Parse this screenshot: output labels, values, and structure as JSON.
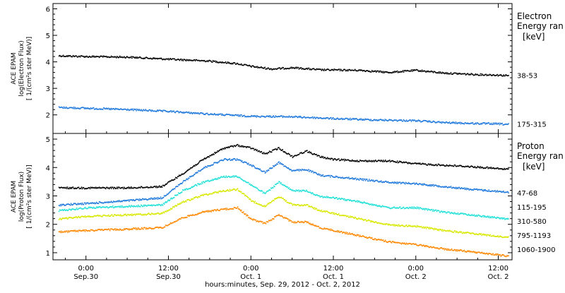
{
  "chart_data": {
    "type": "scatter",
    "x_axis": {
      "title": "hours:minutes, Sep. 29, 2012 - Oct. 2, 2012",
      "range_hours": [
        -4.8,
        62
      ],
      "ticks": [
        {
          "hours": 0,
          "time": "0:00",
          "date": "Sep.30"
        },
        {
          "hours": 12,
          "time": "12:00",
          "date": "Sep.30"
        },
        {
          "hours": 24,
          "time": "0:00",
          "date": "Oct. 1"
        },
        {
          "hours": 36,
          "time": "12:00",
          "date": "Oct. 1"
        },
        {
          "hours": 48,
          "time": "0:00",
          "date": "Oct. 2"
        },
        {
          "hours": 60,
          "time": "12:00",
          "date": "Oct. 2"
        }
      ]
    },
    "panels": [
      {
        "id": "electron",
        "ylabel": [
          "ACE EPAM",
          "log(Electron Flux)",
          "[ 1/(cm²s ster MeV)]"
        ],
        "ylim": [
          1.3,
          6.2
        ],
        "yticks": [
          2,
          3,
          4,
          5,
          6
        ],
        "legend_title": [
          "Electron",
          "Energy ran"
        ],
        "legend_unit": "[keV]",
        "series": [
          {
            "name": "38-53",
            "color": "#000000",
            "points": [
              [
                -4,
                4.25
              ],
              [
                0,
                4.22
              ],
              [
                6,
                4.2
              ],
              [
                12,
                4.12
              ],
              [
                18,
                4.05
              ],
              [
                22,
                3.95
              ],
              [
                24,
                3.85
              ],
              [
                27,
                3.75
              ],
              [
                30,
                3.8
              ],
              [
                34,
                3.72
              ],
              [
                40,
                3.7
              ],
              [
                44,
                3.62
              ],
              [
                48,
                3.7
              ],
              [
                52,
                3.6
              ],
              [
                56,
                3.55
              ],
              [
                60,
                3.52
              ],
              [
                61.5,
                3.5
              ]
            ]
          },
          {
            "name": "175-315",
            "color": "#1e78dc",
            "points": [
              [
                -4,
                2.3
              ],
              [
                0,
                2.27
              ],
              [
                6,
                2.22
              ],
              [
                12,
                2.15
              ],
              [
                18,
                2.05
              ],
              [
                24,
                1.97
              ],
              [
                30,
                1.95
              ],
              [
                36,
                1.88
              ],
              [
                42,
                1.83
              ],
              [
                48,
                1.8
              ],
              [
                52,
                1.73
              ],
              [
                56,
                1.7
              ],
              [
                60,
                1.68
              ],
              [
                61.5,
                1.66
              ]
            ]
          }
        ]
      },
      {
        "id": "proton",
        "ylabel": [
          "ACE EPAM",
          "log(Proton Flux)",
          "[ 1/(cm²s ster MeV)]"
        ],
        "ylim": [
          0.75,
          5.2
        ],
        "yticks": [
          1,
          2,
          3,
          4,
          5
        ],
        "legend_title": [
          "Proton",
          "Energy ran"
        ],
        "legend_unit": "[keV]",
        "series": [
          {
            "name": "47-68",
            "color": "#000000",
            "points": [
              [
                -4,
                3.3
              ],
              [
                0,
                3.3
              ],
              [
                6,
                3.3
              ],
              [
                11,
                3.35
              ],
              [
                14,
                3.8
              ],
              [
                17,
                4.3
              ],
              [
                20,
                4.7
              ],
              [
                22,
                4.8
              ],
              [
                24,
                4.7
              ],
              [
                26,
                4.5
              ],
              [
                28,
                4.7
              ],
              [
                30,
                4.4
              ],
              [
                32,
                4.6
              ],
              [
                34,
                4.4
              ],
              [
                36,
                4.3
              ],
              [
                40,
                4.25
              ],
              [
                44,
                4.25
              ],
              [
                48,
                4.15
              ],
              [
                52,
                4.1
              ],
              [
                56,
                4.05
              ],
              [
                61.5,
                3.95
              ]
            ]
          },
          {
            "name": "115-195",
            "color": "#1e78dc",
            "points": [
              [
                -4,
                2.7
              ],
              [
                0,
                2.75
              ],
              [
                6,
                2.85
              ],
              [
                11,
                2.95
              ],
              [
                14,
                3.5
              ],
              [
                17,
                4.0
              ],
              [
                20,
                4.3
              ],
              [
                22,
                4.3
              ],
              [
                24,
                4.1
              ],
              [
                26,
                3.85
              ],
              [
                28,
                4.2
              ],
              [
                30,
                3.9
              ],
              [
                32,
                3.95
              ],
              [
                34,
                3.75
              ],
              [
                36,
                3.7
              ],
              [
                40,
                3.6
              ],
              [
                44,
                3.5
              ],
              [
                48,
                3.45
              ],
              [
                52,
                3.35
              ],
              [
                56,
                3.25
              ],
              [
                61.5,
                3.15
              ]
            ]
          },
          {
            "name": "310-580",
            "color": "#20e0d8",
            "points": [
              [
                -4,
                2.5
              ],
              [
                0,
                2.6
              ],
              [
                6,
                2.65
              ],
              [
                11,
                2.7
              ],
              [
                14,
                3.2
              ],
              [
                17,
                3.5
              ],
              [
                20,
                3.7
              ],
              [
                22,
                3.7
              ],
              [
                24,
                3.4
              ],
              [
                26,
                3.1
              ],
              [
                28,
                3.5
              ],
              [
                30,
                3.2
              ],
              [
                32,
                3.2
              ],
              [
                34,
                3.0
              ],
              [
                36,
                2.95
              ],
              [
                40,
                2.8
              ],
              [
                44,
                2.6
              ],
              [
                48,
                2.6
              ],
              [
                52,
                2.45
              ],
              [
                56,
                2.35
              ],
              [
                61.5,
                2.2
              ]
            ]
          },
          {
            "name": "795-1193",
            "color": "#d8e800",
            "points": [
              [
                -4,
                2.2
              ],
              [
                0,
                2.3
              ],
              [
                6,
                2.35
              ],
              [
                11,
                2.4
              ],
              [
                14,
                2.8
              ],
              [
                17,
                3.05
              ],
              [
                20,
                3.2
              ],
              [
                22,
                3.25
              ],
              [
                24,
                2.85
              ],
              [
                26,
                2.65
              ],
              [
                28,
                3.0
              ],
              [
                30,
                2.7
              ],
              [
                32,
                2.7
              ],
              [
                34,
                2.5
              ],
              [
                36,
                2.4
              ],
              [
                40,
                2.2
              ],
              [
                44,
                2.0
              ],
              [
                48,
                1.95
              ],
              [
                52,
                1.8
              ],
              [
                56,
                1.7
              ],
              [
                61.5,
                1.55
              ]
            ]
          },
          {
            "name": "1060-1900",
            "color": "#ff8800",
            "points": [
              [
                -4,
                1.75
              ],
              [
                0,
                1.8
              ],
              [
                6,
                1.85
              ],
              [
                11,
                1.9
              ],
              [
                14,
                2.25
              ],
              [
                17,
                2.45
              ],
              [
                20,
                2.55
              ],
              [
                22,
                2.6
              ],
              [
                24,
                2.2
              ],
              [
                26,
                2.05
              ],
              [
                28,
                2.35
              ],
              [
                30,
                2.1
              ],
              [
                32,
                2.1
              ],
              [
                34,
                1.9
              ],
              [
                36,
                1.8
              ],
              [
                40,
                1.6
              ],
              [
                44,
                1.4
              ],
              [
                48,
                1.3
              ],
              [
                52,
                1.15
              ],
              [
                56,
                1.05
              ],
              [
                61.5,
                0.9
              ]
            ]
          }
        ]
      }
    ]
  }
}
